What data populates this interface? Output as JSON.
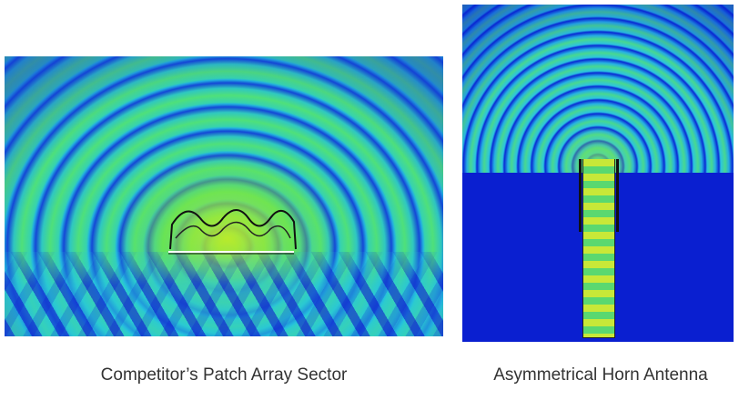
{
  "panels": [
    {
      "caption": "Competitor’s Patch Array Sector"
    },
    {
      "caption": "Asymmetrical Horn Antenna"
    }
  ],
  "colors": {
    "field_low": "#1a4fd8",
    "field_mid": "#36d2b0",
    "field_high": "#c8e838"
  }
}
